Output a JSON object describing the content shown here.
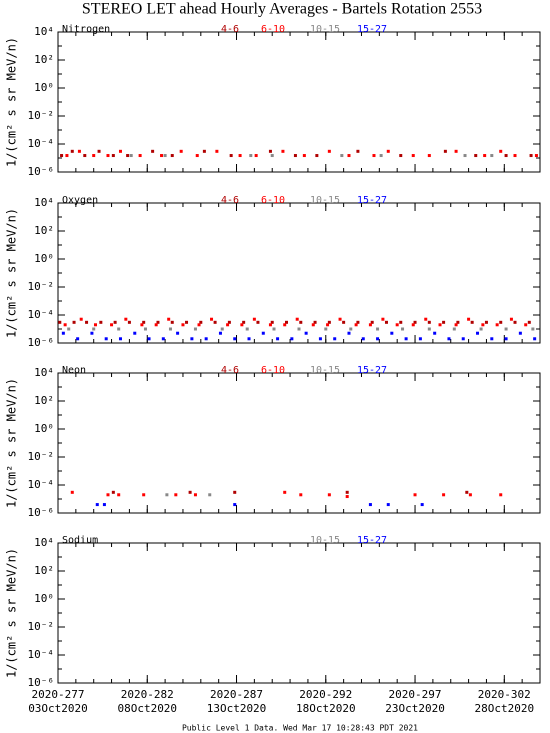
{
  "title": "STEREO LET ahead Hourly Averages - Bartels Rotation 2553",
  "footer": "Public Level 1 Data. Wed Mar 17 10:28:43 PDT 2021",
  "xaxis": {
    "xlim": [
      277,
      304
    ],
    "xticks": [
      {
        "value": 277,
        "label": "2020-277"
      },
      {
        "value": 282,
        "label": "2020-282"
      },
      {
        "value": 287,
        "label": "2020-287"
      },
      {
        "value": 292,
        "label": "2020-292"
      },
      {
        "value": 297,
        "label": "2020-297"
      },
      {
        "value": 302,
        "label": "2020-302"
      }
    ],
    "xtick_dates": [
      "03Oct2020",
      "08Oct2020",
      "13Oct2020",
      "18Oct2020",
      "23Oct2020",
      "28Oct2020"
    ]
  },
  "chart_data": [
    {
      "type": "scatter",
      "title": "Nitrogen",
      "ylabel": "1/(cm² s sr MeV/n)",
      "log_y": true,
      "ylim": [
        1e-06,
        10000
      ],
      "yticks": [
        {
          "value": 10000,
          "label": "10⁴"
        },
        {
          "value": 100,
          "label": "10²"
        },
        {
          "value": 1,
          "label": "10⁰"
        },
        {
          "value": 0.01,
          "label": "10⁻²"
        },
        {
          "value": 0.0001,
          "label": "10⁻⁴"
        },
        {
          "value": 1e-06,
          "label": "10⁻⁶"
        }
      ],
      "series": [
        {
          "name": "4-6",
          "color": "#b00000",
          "x": [
            277.2,
            277.8,
            278.5,
            279.3,
            280.1,
            280.9,
            282.3,
            283.4,
            285.2,
            286.7,
            288.9,
            290.3,
            291.5,
            293.8,
            296.2,
            298.7,
            300.4,
            302.1,
            303.5
          ],
          "values": [
            1.5e-05,
            3e-05,
            1.5e-05,
            3e-05,
            1.5e-05,
            1.5e-05,
            3e-05,
            1.5e-05,
            3e-05,
            1.5e-05,
            3e-05,
            1.5e-05,
            1.5e-05,
            3e-05,
            1.5e-05,
            3e-05,
            1.5e-05,
            1.5e-05,
            1.5e-05
          ]
        },
        {
          "name": "6-10",
          "color": "#ff0000",
          "x": [
            277.5,
            278.2,
            279.0,
            279.8,
            280.5,
            281.6,
            282.8,
            283.9,
            284.8,
            285.9,
            287.2,
            288.1,
            289.6,
            290.8,
            292.2,
            293.3,
            294.7,
            295.5,
            296.9,
            297.8,
            299.3,
            300.9,
            301.8,
            302.6,
            303.8
          ],
          "values": [
            1.5e-05,
            3e-05,
            1.5e-05,
            1.5e-05,
            3e-05,
            1.5e-05,
            1.5e-05,
            3e-05,
            1.5e-05,
            3e-05,
            1.5e-05,
            1.5e-05,
            3e-05,
            1.5e-05,
            3e-05,
            1.5e-05,
            1.5e-05,
            3e-05,
            1.5e-05,
            1.5e-05,
            3e-05,
            1.5e-05,
            3e-05,
            1.5e-05,
            1.5e-05
          ]
        },
        {
          "name": "10-15",
          "color": "#888888",
          "x": [
            281.1,
            283.0,
            287.8,
            289.0,
            292.9,
            295.1,
            299.8,
            301.3
          ],
          "values": [
            1.5e-05,
            1.5e-05,
            1.5e-05,
            1.5e-05,
            1.5e-05,
            1.5e-05,
            1.5e-05,
            1.5e-05
          ]
        },
        {
          "name": "15-27",
          "color": "#0000ff",
          "x": [],
          "values": []
        }
      ]
    },
    {
      "type": "scatter",
      "title": "Oxygen",
      "ylabel": "1/(cm² s sr MeV/n)",
      "log_y": true,
      "ylim": [
        1e-06,
        10000
      ],
      "yticks": [
        {
          "value": 10000,
          "label": "10⁴"
        },
        {
          "value": 100,
          "label": "10²"
        },
        {
          "value": 1,
          "label": "10⁰"
        },
        {
          "value": 0.01,
          "label": "10⁻²"
        },
        {
          "value": 0.0001,
          "label": "10⁻⁴"
        },
        {
          "value": 1e-06,
          "label": "10⁻⁶"
        }
      ],
      "series": [
        {
          "name": "4-6",
          "color": "#b00000",
          "x": [
            277.1,
            277.9,
            278.6,
            279.4,
            280.2,
            281.0,
            281.8,
            282.6,
            283.4,
            284.2,
            285.0,
            285.8,
            286.6,
            287.4,
            288.2,
            289.0,
            289.8,
            290.6,
            291.4,
            292.2,
            293.0,
            293.8,
            294.6,
            295.4,
            296.2,
            297.0,
            297.8,
            298.6,
            299.4,
            300.2,
            301.0,
            301.8,
            302.6,
            303.4
          ],
          "values": [
            3e-05,
            3e-05,
            3e-05,
            3e-05,
            3e-05,
            3e-05,
            3e-05,
            3e-05,
            3e-05,
            3e-05,
            3e-05,
            3e-05,
            3e-05,
            3e-05,
            3e-05,
            3e-05,
            3e-05,
            3e-05,
            3e-05,
            3e-05,
            3e-05,
            3e-05,
            3e-05,
            3e-05,
            3e-05,
            3e-05,
            3e-05,
            3e-05,
            3e-05,
            3e-05,
            3e-05,
            3e-05,
            3e-05,
            3e-05
          ]
        },
        {
          "name": "6-10",
          "color": "#ff0000",
          "x": [
            277.4,
            278.3,
            279.1,
            280.0,
            280.8,
            281.7,
            282.5,
            283.2,
            284.0,
            284.9,
            285.6,
            286.5,
            287.3,
            288.0,
            288.9,
            289.7,
            290.4,
            291.3,
            292.1,
            292.8,
            293.7,
            294.5,
            295.2,
            296.0,
            296.9,
            297.6,
            298.4,
            299.3,
            300.0,
            300.8,
            301.6,
            302.4,
            303.2
          ],
          "values": [
            2e-05,
            5e-05,
            2e-05,
            2e-05,
            5e-05,
            2e-05,
            2e-05,
            5e-05,
            2e-05,
            2e-05,
            5e-05,
            2e-05,
            2e-05,
            5e-05,
            2e-05,
            2e-05,
            5e-05,
            2e-05,
            2e-05,
            5e-05,
            2e-05,
            2e-05,
            5e-05,
            2e-05,
            2e-05,
            5e-05,
            2e-05,
            2e-05,
            5e-05,
            2e-05,
            2e-05,
            5e-05,
            2e-05
          ]
        },
        {
          "name": "10-15",
          "color": "#888888",
          "x": [
            277.6,
            279.0,
            280.4,
            281.9,
            283.3,
            284.7,
            286.2,
            287.6,
            289.1,
            290.5,
            292.0,
            293.4,
            294.9,
            296.3,
            297.8,
            299.2,
            300.7,
            302.1,
            303.6
          ],
          "values": [
            1e-05,
            1e-05,
            1e-05,
            1e-05,
            1e-05,
            1e-05,
            1e-05,
            1e-05,
            1e-05,
            1e-05,
            1e-05,
            1e-05,
            1e-05,
            1e-05,
            1e-05,
            1e-05,
            1e-05,
            1e-05,
            1e-05
          ]
        },
        {
          "name": "15-27",
          "color": "#0000ff",
          "x": [
            277.3,
            278.1,
            278.9,
            279.7,
            280.5,
            281.3,
            282.1,
            282.9,
            283.7,
            284.5,
            285.3,
            286.1,
            286.9,
            287.7,
            288.5,
            289.3,
            290.1,
            290.9,
            291.7,
            292.5,
            293.3,
            294.1,
            294.9,
            295.7,
            296.5,
            297.3,
            298.1,
            298.9,
            299.7,
            300.5,
            301.3,
            302.1,
            302.9,
            303.7
          ],
          "values": [
            5e-06,
            2e-06,
            5e-06,
            2e-06,
            2e-06,
            5e-06,
            2e-06,
            2e-06,
            5e-06,
            2e-06,
            2e-06,
            5e-06,
            2e-06,
            2e-06,
            5e-06,
            2e-06,
            2e-06,
            5e-06,
            2e-06,
            2e-06,
            5e-06,
            2e-06,
            2e-06,
            5e-06,
            2e-06,
            2e-06,
            5e-06,
            2e-06,
            2e-06,
            5e-06,
            2e-06,
            2e-06,
            5e-06,
            2e-06
          ]
        }
      ]
    },
    {
      "type": "scatter",
      "title": "Neon",
      "ylabel": "1/(cm² s sr MeV/n)",
      "log_y": true,
      "ylim": [
        1e-06,
        10000
      ],
      "yticks": [
        {
          "value": 10000,
          "label": "10⁴"
        },
        {
          "value": 100,
          "label": "10²"
        },
        {
          "value": 1,
          "label": "10⁰"
        },
        {
          "value": 0.01,
          "label": "10⁻²"
        },
        {
          "value": 0.0001,
          "label": "10⁻⁴"
        },
        {
          "value": 1e-06,
          "label": "10⁻⁶"
        }
      ],
      "series": [
        {
          "name": "4-6",
          "color": "#b00000",
          "x": [
            280.1,
            284.4,
            286.9,
            293.2,
            299.9
          ],
          "values": [
            3e-05,
            3e-05,
            3e-05,
            3e-05,
            3e-05
          ]
        },
        {
          "name": "6-10",
          "color": "#ff0000",
          "x": [
            277.8,
            279.8,
            280.4,
            281.8,
            283.6,
            284.7,
            289.7,
            290.6,
            292.2,
            293.2,
            297.0,
            298.6,
            300.1,
            301.8
          ],
          "values": [
            3e-05,
            2e-05,
            2e-05,
            2e-05,
            2e-05,
            2e-05,
            3e-05,
            2e-05,
            2e-05,
            1.5e-05,
            2e-05,
            2e-05,
            2e-05,
            2e-05
          ]
        },
        {
          "name": "10-15",
          "color": "#888888",
          "x": [
            283.1,
            285.5
          ],
          "values": [
            2e-05,
            2e-05
          ]
        },
        {
          "name": "15-27",
          "color": "#0000ff",
          "x": [
            279.2,
            279.6,
            286.9,
            294.5,
            295.5,
            297.4
          ],
          "values": [
            4e-06,
            4e-06,
            4e-06,
            4e-06,
            4e-06,
            4e-06
          ]
        }
      ]
    },
    {
      "type": "scatter",
      "title": "Sodium",
      "ylabel": "1/(cm² s sr MeV/n)",
      "log_y": true,
      "ylim": [
        1e-06,
        10000
      ],
      "yticks": [
        {
          "value": 10000,
          "label": "10⁴"
        },
        {
          "value": 100,
          "label": "10²"
        },
        {
          "value": 1,
          "label": "10⁰"
        },
        {
          "value": 0.01,
          "label": "10⁻²"
        },
        {
          "value": 0.0001,
          "label": "10⁻⁴"
        },
        {
          "value": 1e-06,
          "label": "10⁻⁶"
        }
      ],
      "series": [
        {
          "name": "10-15",
          "color": "#888888",
          "x": [],
          "values": []
        },
        {
          "name": "15-27",
          "color": "#0000ff",
          "x": [],
          "values": []
        }
      ]
    }
  ]
}
